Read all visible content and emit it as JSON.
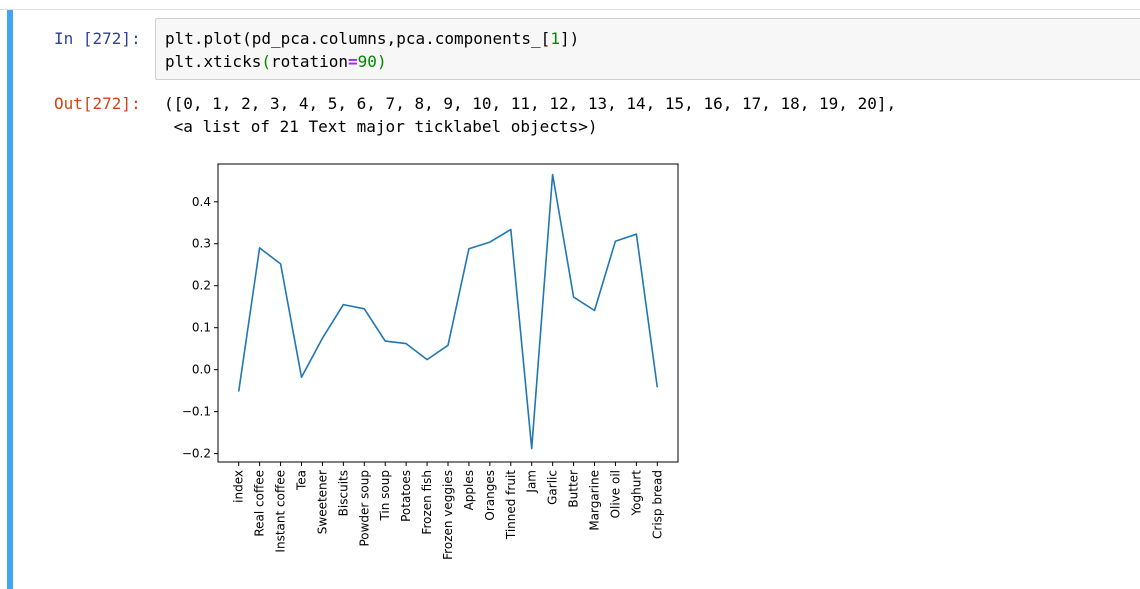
{
  "notebook": {
    "in_prompt": "In [272]:",
    "out_prompt": "Out[272]:",
    "code_line1": {
      "a": "plt.plot(pd_pca.columns,pca.components_[",
      "num": "1",
      "b": "])"
    },
    "code_line2": {
      "a": "plt.xticks",
      "paren_open": "(",
      "kw": "rotation",
      "op": "=",
      "num": "90",
      "paren_close": ")"
    },
    "output_line1": "([0, 1, 2, 3, 4, 5, 6, 7, 8, 9, 10, 11, 12, 13, 14, 15, 16, 17, 18, 19, 20],",
    "output_line2": " <a list of 21 Text major ticklabel objects>)"
  },
  "colors": {
    "cell_bar": "#42a5f5",
    "line": "#1f77b4",
    "in_prompt": "#303f9f",
    "out_prompt": "#d84315"
  },
  "chart_data": {
    "type": "line",
    "categories": [
      "index",
      "Real coffee",
      "Instant coffee",
      "Tea",
      "Sweetener",
      "Biscuits",
      "Powder soup",
      "Tin soup",
      "Potatoes",
      "Frozen fish",
      "Frozen veggies",
      "Apples",
      "Oranges",
      "Tinned fruit",
      "Jam",
      "Garlic",
      "Butter",
      "Margarine",
      "Olive oil",
      "Yoghurt",
      "Crisp bread"
    ],
    "values": [
      -0.052,
      0.29,
      0.252,
      -0.018,
      0.075,
      0.155,
      0.145,
      0.068,
      0.062,
      0.024,
      0.058,
      0.288,
      0.304,
      0.334,
      -0.188,
      0.465,
      0.173,
      0.141,
      0.306,
      0.323,
      -0.042
    ],
    "yticks": [
      -0.2,
      -0.1,
      0.0,
      0.1,
      0.2,
      0.3,
      0.4
    ],
    "ytick_labels": [
      "−0.2",
      "−0.1",
      "0.0",
      "0.1",
      "0.2",
      "0.3",
      "0.4"
    ],
    "ylim": [
      -0.22,
      0.49
    ],
    "xlabel_rotation": 90,
    "grid": false
  }
}
